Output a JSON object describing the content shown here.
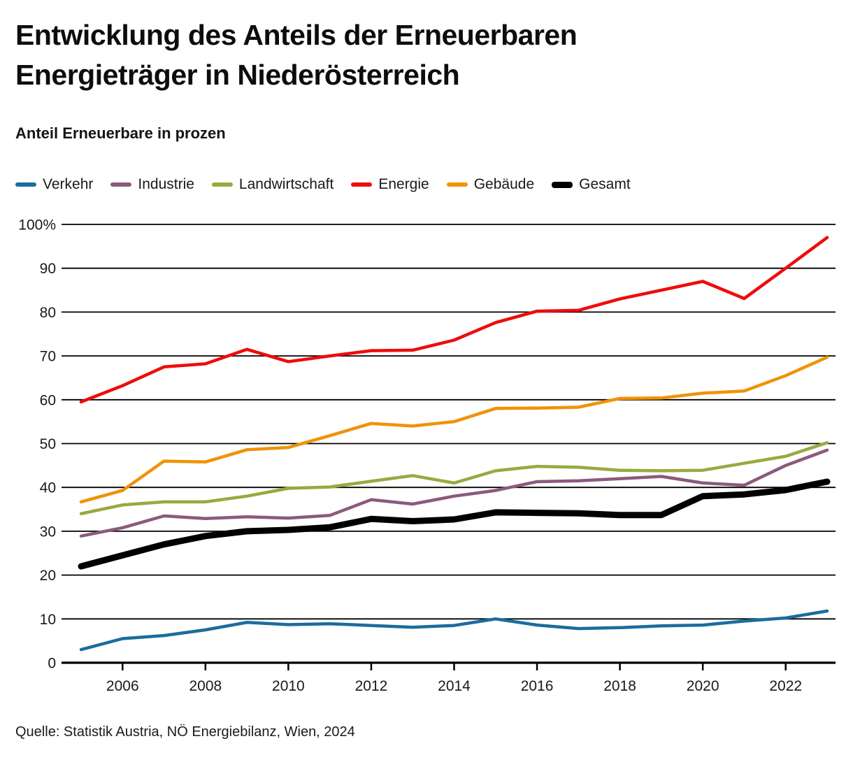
{
  "chart_data": {
    "type": "line",
    "title_lines": [
      "Entwicklung des Anteils der Erneuerbaren",
      "Energieträger in Niederösterreich"
    ],
    "title": "Entwicklung des Anteils der Erneuerbaren Energieträger in Niederösterreich",
    "subtitle": "Anteil Erneuerbare in prozen",
    "source": "Quelle: Statistik Austria, NÖ Energiebilanz, Wien, 2024",
    "x": [
      2005,
      2006,
      2007,
      2008,
      2009,
      2010,
      2011,
      2012,
      2013,
      2014,
      2015,
      2016,
      2017,
      2018,
      2019,
      2020,
      2021,
      2022,
      2023
    ],
    "series": [
      {
        "name": "Verkehr",
        "color": "#1a6d9d",
        "stroke_width": 4.5,
        "values": [
          3.0,
          5.5,
          6.2,
          7.5,
          9.2,
          8.7,
          8.9,
          8.5,
          8.1,
          8.5,
          10.0,
          8.6,
          7.8,
          8.0,
          8.4,
          8.6,
          9.5,
          10.2,
          11.8
        ]
      },
      {
        "name": "Industrie",
        "color": "#8b5a7d",
        "stroke_width": 4.5,
        "values": [
          28.9,
          30.8,
          33.5,
          32.9,
          33.3,
          33.0,
          33.6,
          37.2,
          36.2,
          38.0,
          39.3,
          41.3,
          41.5,
          42.0,
          42.5,
          41.0,
          40.5,
          45.0,
          48.5
        ]
      },
      {
        "name": "Landwirtschaft",
        "color": "#99a940",
        "stroke_width": 4.5,
        "values": [
          34.0,
          36.0,
          36.7,
          36.7,
          38.0,
          39.8,
          40.1,
          41.4,
          42.7,
          41.0,
          43.8,
          44.8,
          44.6,
          43.9,
          43.8,
          43.9,
          45.5,
          47.1,
          50.2
        ]
      },
      {
        "name": "Energie",
        "color": "#ee0c0c",
        "stroke_width": 4.5,
        "values": [
          59.5,
          63.2,
          67.5,
          68.2,
          71.5,
          68.7,
          70.0,
          71.2,
          71.3,
          73.6,
          77.6,
          80.2,
          80.4,
          83.0,
          85.0,
          87.0,
          83.1,
          90.0,
          97.0
        ]
      },
      {
        "name": "Gebäude",
        "color": "#ef9309",
        "stroke_width": 4.5,
        "values": [
          36.7,
          39.3,
          46.0,
          45.8,
          48.6,
          49.1,
          51.8,
          54.6,
          54.0,
          55.0,
          58.0,
          58.1,
          58.3,
          60.3,
          60.4,
          61.5,
          62.0,
          65.5,
          69.7
        ]
      },
      {
        "name": "Gesamt",
        "color": "#000000",
        "stroke_width": 9,
        "values": [
          22.0,
          24.5,
          27.0,
          28.9,
          30.0,
          30.3,
          30.9,
          32.8,
          32.3,
          32.7,
          34.3,
          34.2,
          34.1,
          33.7,
          33.7,
          38.0,
          38.4,
          39.4,
          41.3
        ]
      }
    ],
    "ylim": [
      0,
      100
    ],
    "yticks": [
      {
        "v": 100,
        "label": "100%"
      },
      {
        "v": 90,
        "label": "90"
      },
      {
        "v": 80,
        "label": "80"
      },
      {
        "v": 70,
        "label": "70"
      },
      {
        "v": 60,
        "label": "60"
      },
      {
        "v": 50,
        "label": "50"
      },
      {
        "v": 40,
        "label": "40"
      },
      {
        "v": 30,
        "label": "30"
      },
      {
        "v": 20,
        "label": "20"
      },
      {
        "v": 10,
        "label": "10"
      },
      {
        "v": 0,
        "label": "0"
      }
    ],
    "xticks": [
      {
        "v": 2006,
        "label": "2006"
      },
      {
        "v": 2008,
        "label": "2008"
      },
      {
        "v": 2010,
        "label": "2010"
      },
      {
        "v": 2012,
        "label": "2012"
      },
      {
        "v": 2014,
        "label": "2014"
      },
      {
        "v": 2016,
        "label": "2016"
      },
      {
        "v": 2018,
        "label": "2018"
      },
      {
        "v": 2020,
        "label": "2020"
      },
      {
        "v": 2022,
        "label": "2022"
      }
    ],
    "grid": "horizontal",
    "legend_position": "top-left"
  }
}
